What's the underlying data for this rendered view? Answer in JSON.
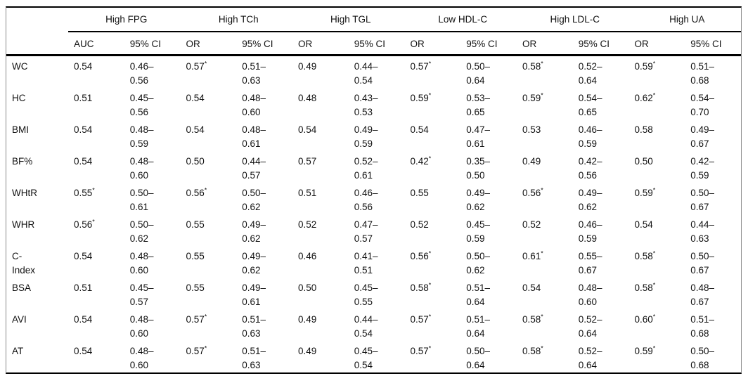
{
  "table": {
    "groups": [
      {
        "label": "High FPG",
        "sub": [
          "AUC",
          "95% CI"
        ]
      },
      {
        "label": "High TCh",
        "sub": [
          "OR",
          "95% CI"
        ]
      },
      {
        "label": "High TGL",
        "sub": [
          "OR",
          "95% CI"
        ]
      },
      {
        "label": "Low HDL-C",
        "sub": [
          "OR",
          "95% CI"
        ]
      },
      {
        "label": "High LDL-C",
        "sub": [
          "OR",
          "95% CI"
        ]
      },
      {
        "label": "High UA",
        "sub": [
          "OR",
          "95% CI"
        ]
      }
    ],
    "rows": [
      {
        "label": "WC",
        "cells": [
          {
            "value": "0.54",
            "star": false
          },
          {
            "ci": "0.46–0.56"
          },
          {
            "value": "0.57",
            "star": true
          },
          {
            "ci": "0.51–0.63"
          },
          {
            "value": "0.49",
            "star": false
          },
          {
            "ci": "0.44–0.54"
          },
          {
            "value": "0.57",
            "star": true
          },
          {
            "ci": "0.50–0.64"
          },
          {
            "value": "0.58",
            "star": true
          },
          {
            "ci": "0.52–0.64"
          },
          {
            "value": "0.59",
            "star": true
          },
          {
            "ci": "0.51–0.68"
          }
        ]
      },
      {
        "label": "HC",
        "cells": [
          {
            "value": "0.51",
            "star": false
          },
          {
            "ci": "0.45–0.56"
          },
          {
            "value": "0.54",
            "star": false
          },
          {
            "ci": "0.48–0.60"
          },
          {
            "value": "0.48",
            "star": false
          },
          {
            "ci": "0.43–0.53"
          },
          {
            "value": "0.59",
            "star": true
          },
          {
            "ci": "0.53–0.65"
          },
          {
            "value": "0.59",
            "star": true
          },
          {
            "ci": "0.54–0.65"
          },
          {
            "value": "0.62",
            "star": true
          },
          {
            "ci": "0.54–0.70"
          }
        ]
      },
      {
        "label": "BMI",
        "cells": [
          {
            "value": "0.54",
            "star": false
          },
          {
            "ci": "0.48–0.59"
          },
          {
            "value": "0.54",
            "star": false
          },
          {
            "ci": "0.48–0.61"
          },
          {
            "value": "0.54",
            "star": false
          },
          {
            "ci": "0.49–0.59"
          },
          {
            "value": "0.54",
            "star": false
          },
          {
            "ci": "0.47–0.61"
          },
          {
            "value": "0.53",
            "star": false
          },
          {
            "ci": "0.46–0.59"
          },
          {
            "value": "0.58",
            "star": false
          },
          {
            "ci": "0.49–0.67"
          }
        ]
      },
      {
        "label": "BF%",
        "cells": [
          {
            "value": "0.54",
            "star": false
          },
          {
            "ci": "0.48–0.60"
          },
          {
            "value": "0.50",
            "star": false
          },
          {
            "ci": "0.44–0.57"
          },
          {
            "value": "0.57",
            "star": false
          },
          {
            "ci": "0.52–0.61"
          },
          {
            "value": "0.42",
            "star": true
          },
          {
            "ci": "0.35–0.50"
          },
          {
            "value": "0.49",
            "star": false
          },
          {
            "ci": "0.42–0.56"
          },
          {
            "value": "0.50",
            "star": false
          },
          {
            "ci": "0.42–0.59"
          }
        ]
      },
      {
        "label": "WHtR",
        "cells": [
          {
            "value": "0.55",
            "star": true
          },
          {
            "ci": "0.50–0.61"
          },
          {
            "value": "0.56",
            "star": true
          },
          {
            "ci": "0.50–0.62"
          },
          {
            "value": "0.51",
            "star": false
          },
          {
            "ci": "0.46–0.56"
          },
          {
            "value": "0.55",
            "star": false
          },
          {
            "ci": "0.49–0.62"
          },
          {
            "value": "0.56",
            "star": true
          },
          {
            "ci": "0.49–0.62"
          },
          {
            "value": "0.59",
            "star": true
          },
          {
            "ci": "0.50–0.67"
          }
        ]
      },
      {
        "label": "WHR",
        "cells": [
          {
            "value": "0.56",
            "star": true
          },
          {
            "ci": "0.50–0.62"
          },
          {
            "value": "0.55",
            "star": false
          },
          {
            "ci": "0.49–0.62"
          },
          {
            "value": "0.52",
            "star": false
          },
          {
            "ci": "0.47–0.57"
          },
          {
            "value": "0.52",
            "star": false
          },
          {
            "ci": "0.45–0.59"
          },
          {
            "value": "0.52",
            "star": false
          },
          {
            "ci": "0.46–0.59"
          },
          {
            "value": "0.54",
            "star": false
          },
          {
            "ci": "0.44–0.63"
          }
        ]
      },
      {
        "label": "C-\nIndex",
        "cells": [
          {
            "value": "0.54",
            "star": false
          },
          {
            "ci": "0.48–0.60"
          },
          {
            "value": "0.55",
            "star": false
          },
          {
            "ci": "0.49–0.62"
          },
          {
            "value": "0.46",
            "star": false
          },
          {
            "ci": "0.41–0.51"
          },
          {
            "value": "0.56",
            "star": true
          },
          {
            "ci": "0.50–0.62"
          },
          {
            "value": "0.61",
            "star": true
          },
          {
            "ci": "0.55–0.67"
          },
          {
            "value": "0.58",
            "star": true
          },
          {
            "ci": "0.50–0.67"
          }
        ]
      },
      {
        "label": "BSA",
        "cells": [
          {
            "value": "0.51",
            "star": false
          },
          {
            "ci": "0.45–0.57"
          },
          {
            "value": "0.55",
            "star": false
          },
          {
            "ci": "0.49–0.61"
          },
          {
            "value": "0.50",
            "star": false
          },
          {
            "ci": "0.45–0.55"
          },
          {
            "value": "0.58",
            "star": true
          },
          {
            "ci": "0.51–0.64"
          },
          {
            "value": "0.54",
            "star": false
          },
          {
            "ci": "0.48–0.60"
          },
          {
            "value": "0.58",
            "star": true
          },
          {
            "ci": "0.48–0.67"
          }
        ]
      },
      {
        "label": "AVI",
        "cells": [
          {
            "value": "0.54",
            "star": false
          },
          {
            "ci": "0.48–0.60"
          },
          {
            "value": "0.57",
            "star": true
          },
          {
            "ci": "0.51–0.63"
          },
          {
            "value": "0.49",
            "star": false
          },
          {
            "ci": "0.44–0.54"
          },
          {
            "value": "0.57",
            "star": true
          },
          {
            "ci": "0.51–0.64"
          },
          {
            "value": "0.58",
            "star": true
          },
          {
            "ci": "0.52–0.64"
          },
          {
            "value": "0.60",
            "star": true
          },
          {
            "ci": "0.51–0.68"
          }
        ]
      },
      {
        "label": "AT",
        "cells": [
          {
            "value": "0.54",
            "star": false
          },
          {
            "ci": "0.48–0.60"
          },
          {
            "value": "0.57",
            "star": true
          },
          {
            "ci": "0.51–0.63"
          },
          {
            "value": "0.49",
            "star": false
          },
          {
            "ci": "0.45–0.54"
          },
          {
            "value": "0.57",
            "star": true
          },
          {
            "ci": "0.50–0.64"
          },
          {
            "value": "0.58",
            "star": true
          },
          {
            "ci": "0.52–0.64"
          },
          {
            "value": "0.59",
            "star": true
          },
          {
            "ci": "0.50–0.68"
          }
        ]
      }
    ],
    "star_symbol": "*"
  }
}
